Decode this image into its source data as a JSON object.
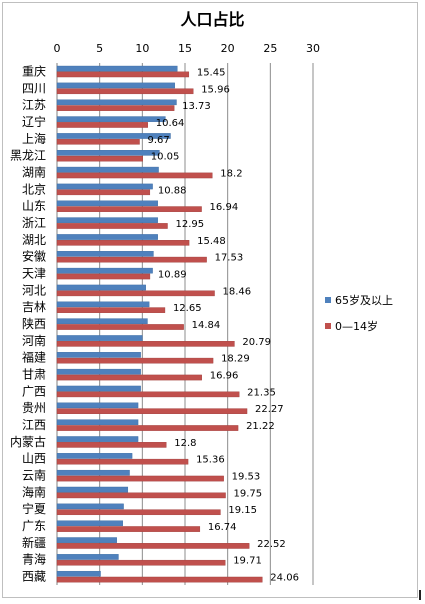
{
  "chart_data": {
    "type": "bar",
    "orientation": "horizontal",
    "title": "人口占比",
    "xlabel": "",
    "ylabel": "",
    "xlim": [
      0,
      30
    ],
    "xticks": [
      0,
      5,
      10,
      15,
      20,
      25,
      30
    ],
    "grid": true,
    "legend_position": "right",
    "categories": [
      "重庆",
      "四川",
      "江苏",
      "辽宁",
      "上海",
      "黑龙江",
      "湖南",
      "北京",
      "山东",
      "浙江",
      "湖北",
      "安徽",
      "天津",
      "河北",
      "吉林",
      "陕西",
      "河南",
      "福建",
      "甘肃",
      "广西",
      "贵州",
      "江西",
      "内蒙古",
      "山西",
      "云南",
      "海南",
      "宁夏",
      "广东",
      "新疆",
      "青海",
      "西藏"
    ],
    "series": [
      {
        "name": "65岁及以上",
        "color": "#4f81bd",
        "values": [
          14.1,
          13.8,
          14.0,
          12.7,
          13.3,
          12.0,
          11.9,
          11.2,
          11.8,
          11.8,
          11.8,
          11.3,
          11.2,
          10.4,
          10.8,
          10.6,
          10.0,
          9.8,
          9.8,
          9.8,
          9.5,
          9.5,
          9.5,
          8.8,
          8.5,
          8.3,
          7.8,
          7.7,
          7.0,
          7.2,
          5.1
        ]
      },
      {
        "name": "0—14岁",
        "color": "#c0504d",
        "values": [
          15.45,
          15.96,
          13.73,
          10.64,
          9.67,
          10.05,
          18.2,
          10.88,
          16.94,
          12.95,
          15.48,
          17.53,
          10.89,
          18.46,
          12.65,
          14.84,
          20.79,
          18.29,
          16.96,
          21.35,
          22.27,
          21.22,
          12.8,
          15.36,
          19.53,
          19.75,
          19.15,
          16.74,
          22.52,
          19.71,
          24.06
        ],
        "labels": [
          "15.45",
          "15.96",
          "13.73",
          "10.64",
          "9.67",
          "10.05",
          "18.2",
          "10.88",
          "16.94",
          "12.95",
          "15.48",
          "17.53",
          "10.89",
          "18.46",
          "12.65",
          "14.84",
          "20.79",
          "18.29",
          "16.96",
          "21.35",
          "22.27",
          "21.22",
          "12.8",
          "15.36",
          "19.53",
          "19.75",
          "19.15",
          "16.74",
          "22.52",
          "19.71",
          "24.06"
        ]
      }
    ]
  }
}
